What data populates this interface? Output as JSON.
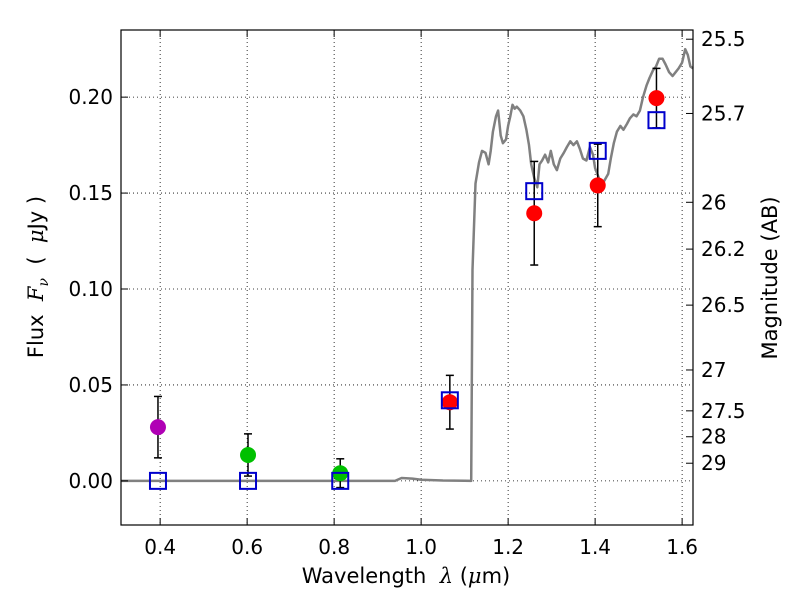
{
  "chart_data": {
    "type": "scatter",
    "xlabel": {
      "prefix": "Wavelength",
      "symbol": "λ",
      "unit_open": "(",
      "unit_mu": "μ",
      "unit_rest": "m)"
    },
    "ylabel": {
      "prefix": "Flux",
      "symbol": "F",
      "subscript": "ν",
      "unit_open": "(",
      "unit_mu": "μ",
      "unit_rest": "Jy )"
    },
    "y2label": "Magnitude (AB)",
    "xlim": [
      0.31,
      1.625
    ],
    "ylim": [
      -0.023,
      0.235
    ],
    "grid": true,
    "x_ticks": [
      0.4,
      0.6,
      0.8,
      1.0,
      1.2,
      1.4,
      1.6
    ],
    "x_tick_labels": [
      "0.4",
      "0.6",
      "0.8",
      "1.0",
      "1.2",
      "1.4",
      "1.6"
    ],
    "y_ticks": [
      0.0,
      0.05,
      0.1,
      0.15,
      0.2
    ],
    "y_tick_labels": [
      "0.00",
      "0.05",
      "0.10",
      "0.15",
      "0.20"
    ],
    "mag_ticks": [
      {
        "label": "25.5",
        "flux": 0.2302
      },
      {
        "label": "25.7",
        "flux": 0.1915
      },
      {
        "label": "26",
        "flux": 0.1452
      },
      {
        "label": "26.2",
        "flux": 0.1208
      },
      {
        "label": "26.5",
        "flux": 0.0916
      },
      {
        "label": "27",
        "flux": 0.0578
      },
      {
        "label": "27.5",
        "flux": 0.0365
      },
      {
        "label": "28",
        "flux": 0.023
      },
      {
        "label": "29",
        "flux": 0.0092
      }
    ],
    "series": [
      {
        "name": "measured-flux",
        "kind": "points-errorbars",
        "points": [
          {
            "x": 0.395,
            "y": 0.028,
            "err": 0.016,
            "color": "#b000b5"
          },
          {
            "x": 0.602,
            "y": 0.0135,
            "err": 0.011,
            "color": "#00c000"
          },
          {
            "x": 0.814,
            "y": 0.004,
            "err": 0.0075,
            "color": "#00c000"
          },
          {
            "x": 1.066,
            "y": 0.041,
            "err": 0.014,
            "color": "#ff0000"
          },
          {
            "x": 1.26,
            "y": 0.1395,
            "err": 0.027,
            "color": "#ff0000"
          },
          {
            "x": 1.406,
            "y": 0.154,
            "err": 0.0215,
            "color": "#ff0000"
          },
          {
            "x": 1.541,
            "y": 0.1995,
            "err": 0.0155,
            "color": "#ff0000"
          }
        ]
      },
      {
        "name": "model-photometry",
        "kind": "open-squares",
        "color": "#0000cc",
        "points": [
          {
            "x": 0.395,
            "y": 0.0
          },
          {
            "x": 0.602,
            "y": 0.0
          },
          {
            "x": 0.814,
            "y": 0.0
          },
          {
            "x": 1.066,
            "y": 0.042
          },
          {
            "x": 1.26,
            "y": 0.151
          },
          {
            "x": 1.406,
            "y": 0.172
          },
          {
            "x": 1.541,
            "y": 0.188
          }
        ]
      },
      {
        "name": "model-spectrum",
        "kind": "line",
        "color": "#808080",
        "points": [
          [
            0.31,
            0.0
          ],
          [
            0.94,
            0.0
          ],
          [
            0.955,
            0.0015
          ],
          [
            0.98,
            0.0012
          ],
          [
            1.0,
            0.0006
          ],
          [
            1.05,
            0.0002
          ],
          [
            1.1,
            0.0001
          ],
          [
            1.115,
            0.0
          ],
          [
            1.118,
            0.11
          ],
          [
            1.125,
            0.155
          ],
          [
            1.133,
            0.166
          ],
          [
            1.14,
            0.172
          ],
          [
            1.148,
            0.171
          ],
          [
            1.155,
            0.165
          ],
          [
            1.16,
            0.172
          ],
          [
            1.165,
            0.182
          ],
          [
            1.172,
            0.19
          ],
          [
            1.177,
            0.193
          ],
          [
            1.183,
            0.18
          ],
          [
            1.188,
            0.176
          ],
          [
            1.195,
            0.178
          ],
          [
            1.2,
            0.185
          ],
          [
            1.205,
            0.19
          ],
          [
            1.21,
            0.196
          ],
          [
            1.215,
            0.194
          ],
          [
            1.22,
            0.195
          ],
          [
            1.228,
            0.193
          ],
          [
            1.235,
            0.19
          ],
          [
            1.242,
            0.183
          ],
          [
            1.248,
            0.175
          ],
          [
            1.253,
            0.165
          ],
          [
            1.26,
            0.158
          ],
          [
            1.267,
            0.153
          ],
          [
            1.272,
            0.165
          ],
          [
            1.278,
            0.167
          ],
          [
            1.285,
            0.17
          ],
          [
            1.292,
            0.166
          ],
          [
            1.298,
            0.172
          ],
          [
            1.305,
            0.165
          ],
          [
            1.312,
            0.162
          ],
          [
            1.32,
            0.168
          ],
          [
            1.328,
            0.171
          ],
          [
            1.335,
            0.174
          ],
          [
            1.343,
            0.177
          ],
          [
            1.35,
            0.175
          ],
          [
            1.358,
            0.177
          ],
          [
            1.365,
            0.173
          ],
          [
            1.372,
            0.168
          ],
          [
            1.38,
            0.167
          ],
          [
            1.388,
            0.174
          ],
          [
            1.395,
            0.17
          ],
          [
            1.4,
            0.163
          ],
          [
            1.41,
            0.157
          ],
          [
            1.42,
            0.156
          ],
          [
            1.43,
            0.16
          ],
          [
            1.436,
            0.168
          ],
          [
            1.443,
            0.176
          ],
          [
            1.45,
            0.182
          ],
          [
            1.458,
            0.185
          ],
          [
            1.465,
            0.183
          ],
          [
            1.473,
            0.186
          ],
          [
            1.48,
            0.189
          ],
          [
            1.488,
            0.191
          ],
          [
            1.495,
            0.19
          ],
          [
            1.503,
            0.193
          ],
          [
            1.51,
            0.2
          ],
          [
            1.518,
            0.206
          ],
          [
            1.525,
            0.21
          ],
          [
            1.533,
            0.214
          ],
          [
            1.54,
            0.216
          ],
          [
            1.547,
            0.22
          ],
          [
            1.555,
            0.22
          ],
          [
            1.562,
            0.217
          ],
          [
            1.57,
            0.213
          ],
          [
            1.578,
            0.211
          ],
          [
            1.585,
            0.213
          ],
          [
            1.592,
            0.215
          ],
          [
            1.6,
            0.218
          ],
          [
            1.607,
            0.225
          ],
          [
            1.613,
            0.222
          ],
          [
            1.619,
            0.216
          ],
          [
            1.625,
            0.215
          ]
        ]
      }
    ]
  }
}
